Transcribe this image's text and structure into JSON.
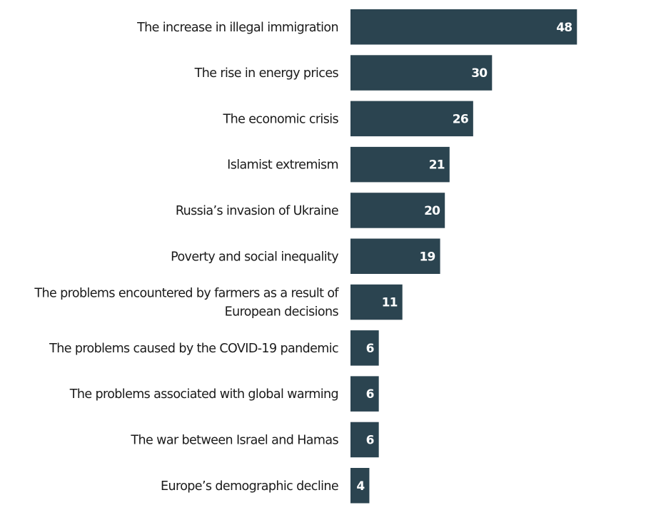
{
  "chart_data": {
    "type": "bar",
    "orientation": "horizontal",
    "title": "",
    "xlabel": "",
    "ylabel": "",
    "xlim": [
      0,
      48
    ],
    "grid": false,
    "legend": null,
    "bar_color": "#2b4450",
    "value_label_color": "#ffffff",
    "categories": [
      [
        "The increase in illegal immigration"
      ],
      [
        "The rise in energy prices"
      ],
      [
        "The economic crisis"
      ],
      [
        "Islamist extremism"
      ],
      [
        "Russia’s invasion of Ukraine"
      ],
      [
        "Poverty and social inequality"
      ],
      [
        "The problems encountered by farmers as a result of",
        "European decisions"
      ],
      [
        "The problems caused by the COVID-19 pandemic"
      ],
      [
        "The problems associated with global warming"
      ],
      [
        "The war between Israel and Hamas"
      ],
      [
        "Europe’s demographic decline"
      ]
    ],
    "values": [
      48,
      30,
      26,
      21,
      20,
      19,
      11,
      6,
      6,
      6,
      4
    ],
    "value_labels": [
      "48",
      "30",
      "26",
      "21",
      "20",
      "19",
      "11",
      "6",
      "6",
      "6",
      "4"
    ]
  }
}
